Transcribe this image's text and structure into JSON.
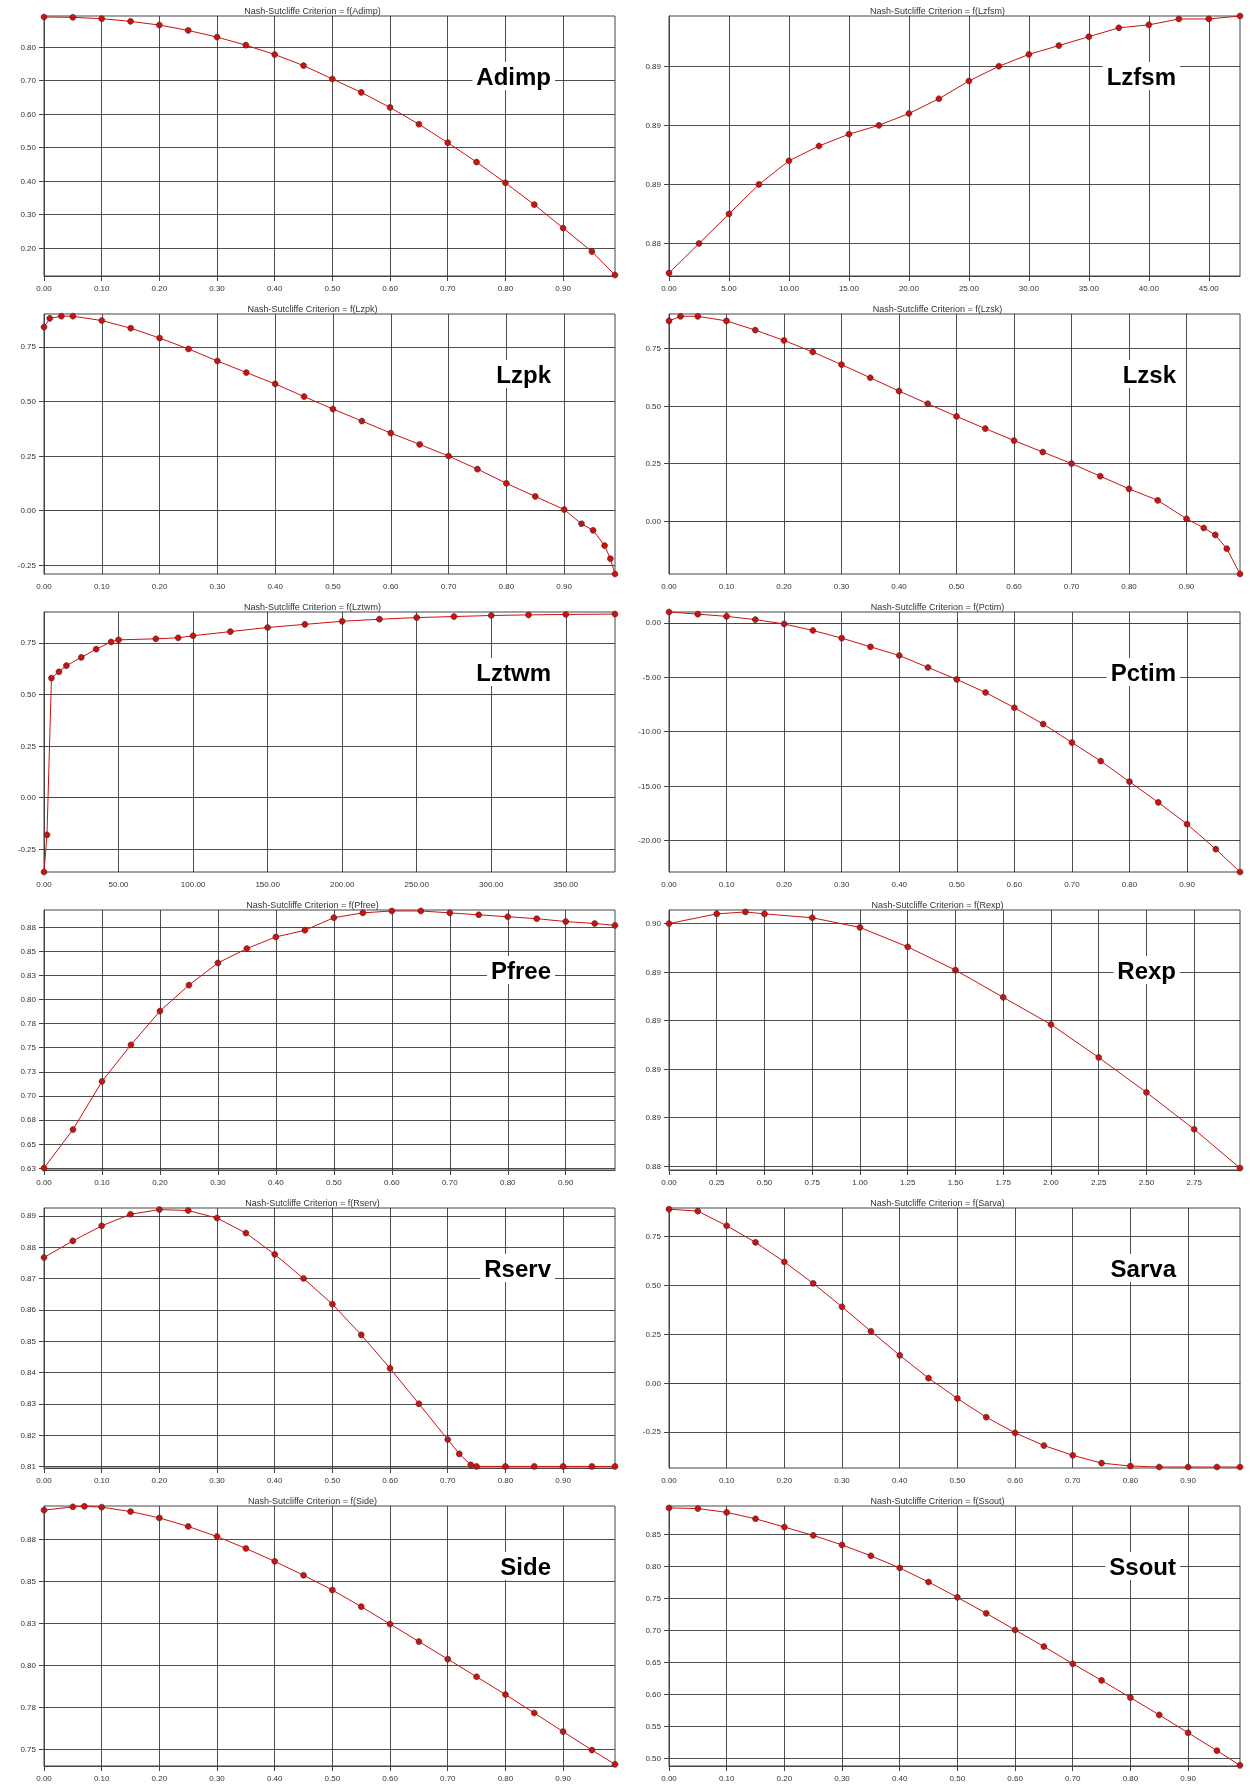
{
  "chart_data": [
    {
      "type": "line",
      "title": "Nash-Sutcliffe Criterion = f(Adimp)",
      "annotations": [
        "Adimp"
      ],
      "color": "#cc1111",
      "marker": "circle",
      "line_style": "solid",
      "grid": true,
      "x": [
        0,
        0.05,
        0.1,
        0.15,
        0.2,
        0.25,
        0.3,
        0.35,
        0.4,
        0.45,
        0.5,
        0.55,
        0.6,
        0.65,
        0.7,
        0.75,
        0.8,
        0.85,
        0.9,
        0.95,
        0.99
      ],
      "values": [
        0.89,
        0.889,
        0.885,
        0.877,
        0.866,
        0.85,
        0.83,
        0.806,
        0.778,
        0.745,
        0.705,
        0.665,
        0.62,
        0.57,
        0.515,
        0.457,
        0.395,
        0.33,
        0.26,
        0.19,
        0.12
      ],
      "xlim": [
        0,
        0.99
      ],
      "xticks": [
        {
          "value": 0,
          "label": "0.00"
        },
        {
          "value": 0.1,
          "label": "0.10"
        },
        {
          "value": 0.2,
          "label": "0.20"
        },
        {
          "value": 0.3,
          "label": "0.30"
        },
        {
          "value": 0.4,
          "label": "0.40"
        },
        {
          "value": 0.5,
          "label": "0.50"
        },
        {
          "value": 0.6,
          "label": "0.60"
        },
        {
          "value": 0.7,
          "label": "0.70"
        },
        {
          "value": 0.8,
          "label": "0.80"
        },
        {
          "value": 0.9,
          "label": "0.90"
        }
      ],
      "ylim": [
        0.117,
        0.893
      ],
      "yticks": [
        {
          "value": 0.2,
          "label": "0.20"
        },
        {
          "value": 0.3,
          "label": "0.30"
        },
        {
          "value": 0.4,
          "label": "0.40"
        },
        {
          "value": 0.5,
          "label": "0.50"
        },
        {
          "value": 0.6,
          "label": "0.60"
        },
        {
          "value": 0.7,
          "label": "0.70"
        },
        {
          "value": 0.8,
          "label": "0.80"
        }
      ]
    },
    {
      "type": "line",
      "title": "Nash-Sutcliffe Criterion = f(Lzfsm)",
      "annotations": [
        "Lzfsm"
      ],
      "color": "#cc1111",
      "marker": "circle",
      "line_style": "solid",
      "grid": true,
      "x": [
        0,
        2.5,
        5,
        7.5,
        10,
        12.5,
        15,
        17.5,
        20,
        22.5,
        25,
        27.5,
        30,
        32.5,
        35,
        37.5,
        40,
        42.5,
        45,
        47.6
      ],
      "values": [
        0.883,
        0.884,
        0.885,
        0.886,
        0.8868,
        0.8873,
        0.8877,
        0.888,
        0.8884,
        0.8889,
        0.8895,
        0.89,
        0.8904,
        0.8907,
        0.891,
        0.8913,
        0.8914,
        0.8916,
        0.8916,
        0.8917
      ],
      "xlim": [
        0,
        47.6
      ],
      "xticks": [
        {
          "value": 0,
          "label": "0.00"
        },
        {
          "value": 5,
          "label": "5.00"
        },
        {
          "value": 10,
          "label": "10.00"
        },
        {
          "value": 15,
          "label": "15.00"
        },
        {
          "value": 20,
          "label": "20.00"
        },
        {
          "value": 25,
          "label": "25.00"
        },
        {
          "value": 30,
          "label": "30.00"
        },
        {
          "value": 35,
          "label": "35.00"
        },
        {
          "value": 40,
          "label": "40.00"
        },
        {
          "value": 45,
          "label": "45.00"
        }
      ],
      "ylim": [
        0.8829,
        0.8917
      ],
      "yticks": [
        {
          "value": 0.884,
          "label": "0.88"
        },
        {
          "value": 0.886,
          "label": "0.89"
        },
        {
          "value": 0.888,
          "label": "0.89"
        },
        {
          "value": 0.89,
          "label": "0.89"
        }
      ]
    },
    {
      "type": "line",
      "title": "Nash-Sutcliffe Criterion = f(Lzpk)",
      "annotations": [
        "Lzpk"
      ],
      "color": "#cc1111",
      "marker": "circle",
      "line_style": "solid",
      "grid": true,
      "x": [
        0,
        0.01,
        0.03,
        0.05,
        0.1,
        0.15,
        0.2,
        0.25,
        0.3,
        0.35,
        0.4,
        0.45,
        0.5,
        0.55,
        0.6,
        0.65,
        0.7,
        0.75,
        0.8,
        0.85,
        0.9,
        0.93,
        0.95,
        0.97,
        0.98,
        0.988
      ],
      "values": [
        0.84,
        0.88,
        0.89,
        0.89,
        0.87,
        0.835,
        0.79,
        0.74,
        0.685,
        0.632,
        0.58,
        0.522,
        0.465,
        0.41,
        0.355,
        0.303,
        0.25,
        0.19,
        0.125,
        0.065,
        0.005,
        -0.06,
        -0.09,
        -0.16,
        -0.22,
        -0.29
      ],
      "xlim": [
        0,
        0.988
      ],
      "xticks": [
        {
          "value": 0,
          "label": "0.00"
        },
        {
          "value": 0.1,
          "label": "0.10"
        },
        {
          "value": 0.2,
          "label": "0.20"
        },
        {
          "value": 0.3,
          "label": "0.30"
        },
        {
          "value": 0.4,
          "label": "0.40"
        },
        {
          "value": 0.5,
          "label": "0.50"
        },
        {
          "value": 0.6,
          "label": "0.60"
        },
        {
          "value": 0.7,
          "label": "0.70"
        },
        {
          "value": 0.8,
          "label": "0.80"
        },
        {
          "value": 0.9,
          "label": "0.90"
        }
      ],
      "ylim": [
        -0.29,
        0.9
      ],
      "yticks": [
        {
          "value": -0.25,
          "label": "-0.25"
        },
        {
          "value": 0,
          "label": "0.00"
        },
        {
          "value": 0.25,
          "label": "0.25"
        },
        {
          "value": 0.5,
          "label": "0.50"
        },
        {
          "value": 0.75,
          "label": "0.75"
        }
      ]
    },
    {
      "type": "line",
      "title": "Nash-Sutcliffe Criterion = f(Lzsk)",
      "annotations": [
        "Lzsk"
      ],
      "color": "#cc1111",
      "marker": "circle",
      "line_style": "solid",
      "grid": true,
      "x": [
        0,
        0.02,
        0.05,
        0.1,
        0.15,
        0.2,
        0.25,
        0.3,
        0.35,
        0.4,
        0.45,
        0.5,
        0.55,
        0.6,
        0.65,
        0.7,
        0.75,
        0.8,
        0.85,
        0.9,
        0.93,
        0.95,
        0.97,
        0.993
      ],
      "values": [
        0.87,
        0.89,
        0.89,
        0.87,
        0.83,
        0.785,
        0.735,
        0.68,
        0.623,
        0.565,
        0.51,
        0.455,
        0.402,
        0.35,
        0.3,
        0.25,
        0.195,
        0.14,
        0.09,
        0.01,
        -0.03,
        -0.06,
        -0.12,
        -0.23
      ],
      "xlim": [
        0,
        0.993
      ],
      "xticks": [
        {
          "value": 0,
          "label": "0.00"
        },
        {
          "value": 0.1,
          "label": "0.10"
        },
        {
          "value": 0.2,
          "label": "0.20"
        },
        {
          "value": 0.3,
          "label": "0.30"
        },
        {
          "value": 0.4,
          "label": "0.40"
        },
        {
          "value": 0.5,
          "label": "0.50"
        },
        {
          "value": 0.6,
          "label": "0.60"
        },
        {
          "value": 0.7,
          "label": "0.70"
        },
        {
          "value": 0.8,
          "label": "0.80"
        },
        {
          "value": 0.9,
          "label": "0.90"
        }
      ],
      "ylim": [
        -0.23,
        0.9
      ],
      "yticks": [
        {
          "value": 0,
          "label": "0.00"
        },
        {
          "value": 0.25,
          "label": "0.25"
        },
        {
          "value": 0.5,
          "label": "0.50"
        },
        {
          "value": 0.75,
          "label": "0.75"
        }
      ]
    },
    {
      "type": "line",
      "title": "Nash-Sutcliffe Criterion = f(Lztwm)",
      "annotations": [
        "Lztwm"
      ],
      "color": "#cc1111",
      "marker": "circle",
      "line_style": "solid",
      "grid": true,
      "x": [
        0,
        2,
        5,
        10,
        15,
        25,
        35,
        45,
        50,
        75,
        90,
        100,
        125,
        150,
        175,
        200,
        225,
        250,
        275,
        300,
        325,
        350,
        383
      ],
      "values": [
        -0.36,
        -0.18,
        0.58,
        0.61,
        0.64,
        0.68,
        0.72,
        0.755,
        0.765,
        0.77,
        0.775,
        0.785,
        0.805,
        0.825,
        0.84,
        0.855,
        0.865,
        0.873,
        0.878,
        0.883,
        0.886,
        0.888,
        0.89
      ],
      "xlim": [
        0,
        383
      ],
      "xticks": [
        {
          "value": 0,
          "label": "0.00"
        },
        {
          "value": 50,
          "label": "50.00"
        },
        {
          "value": 100,
          "label": "100.00"
        },
        {
          "value": 150,
          "label": "150.00"
        },
        {
          "value": 200,
          "label": "200.00"
        },
        {
          "value": 250,
          "label": "250.00"
        },
        {
          "value": 300,
          "label": "300.00"
        },
        {
          "value": 350,
          "label": "350.00"
        }
      ],
      "ylim": [
        -0.36,
        0.9
      ],
      "yticks": [
        {
          "value": -0.25,
          "label": "-0.25"
        },
        {
          "value": 0,
          "label": "0.00"
        },
        {
          "value": 0.25,
          "label": "0.25"
        },
        {
          "value": 0.5,
          "label": "0.50"
        },
        {
          "value": 0.75,
          "label": "0.75"
        }
      ]
    },
    {
      "type": "line",
      "title": "Nash-Sutcliffe Criterion = f(Pctim)",
      "annotations": [
        "Pctim"
      ],
      "color": "#cc1111",
      "marker": "circle",
      "line_style": "solid",
      "grid": true,
      "x": [
        0,
        0.05,
        0.1,
        0.15,
        0.2,
        0.25,
        0.3,
        0.35,
        0.4,
        0.45,
        0.5,
        0.55,
        0.6,
        0.65,
        0.7,
        0.75,
        0.8,
        0.85,
        0.9,
        0.95,
        0.992
      ],
      "values": [
        1.0,
        0.8,
        0.6,
        0.3,
        -0.1,
        -0.7,
        -1.4,
        -2.2,
        -3.0,
        -4.1,
        -5.2,
        -6.4,
        -7.8,
        -9.3,
        -11.0,
        -12.7,
        -14.6,
        -16.5,
        -18.5,
        -20.8,
        -22.9
      ],
      "xlim": [
        0,
        0.992
      ],
      "xticks": [
        {
          "value": 0,
          "label": "0.00"
        },
        {
          "value": 0.1,
          "label": "0.10"
        },
        {
          "value": 0.2,
          "label": "0.20"
        },
        {
          "value": 0.3,
          "label": "0.30"
        },
        {
          "value": 0.4,
          "label": "0.40"
        },
        {
          "value": 0.5,
          "label": "0.50"
        },
        {
          "value": 0.6,
          "label": "0.60"
        },
        {
          "value": 0.7,
          "label": "0.70"
        },
        {
          "value": 0.8,
          "label": "0.80"
        },
        {
          "value": 0.9,
          "label": "0.90"
        }
      ],
      "ylim": [
        -22.9,
        1.0
      ],
      "yticks": [
        {
          "value": -20,
          "label": "-20.00"
        },
        {
          "value": -15,
          "label": "-15.00"
        },
        {
          "value": -10,
          "label": "-10.00"
        },
        {
          "value": -5,
          "label": "-5.00"
        },
        {
          "value": 0,
          "label": "0.00"
        }
      ]
    },
    {
      "type": "line",
      "title": "Nash-Sutcliffe Criterion = f(Pfree)",
      "annotations": [
        "Pfree"
      ],
      "color": "#cc1111",
      "marker": "circle",
      "line_style": "solid",
      "grid": true,
      "x": [
        0,
        0.05,
        0.1,
        0.15,
        0.2,
        0.25,
        0.3,
        0.35,
        0.4,
        0.45,
        0.5,
        0.55,
        0.6,
        0.65,
        0.7,
        0.75,
        0.8,
        0.85,
        0.9,
        0.95,
        0.985
      ],
      "values": [
        0.625,
        0.665,
        0.715,
        0.753,
        0.788,
        0.815,
        0.838,
        0.853,
        0.865,
        0.872,
        0.885,
        0.89,
        0.892,
        0.892,
        0.89,
        0.888,
        0.886,
        0.884,
        0.881,
        0.879,
        0.877
      ],
      "xlim": [
        0,
        0.985
      ],
      "xticks": [
        {
          "value": 0,
          "label": "0.00"
        },
        {
          "value": 0.1,
          "label": "0.10"
        },
        {
          "value": 0.2,
          "label": "0.20"
        },
        {
          "value": 0.3,
          "label": "0.30"
        },
        {
          "value": 0.4,
          "label": "0.40"
        },
        {
          "value": 0.5,
          "label": "0.50"
        },
        {
          "value": 0.6,
          "label": "0.60"
        },
        {
          "value": 0.7,
          "label": "0.70"
        },
        {
          "value": 0.8,
          "label": "0.80"
        },
        {
          "value": 0.9,
          "label": "0.90"
        }
      ],
      "ylim": [
        0.623,
        0.893
      ],
      "yticks": [
        {
          "value": 0.625,
          "label": "0.63"
        },
        {
          "value": 0.65,
          "label": "0.65"
        },
        {
          "value": 0.675,
          "label": "0.68"
        },
        {
          "value": 0.7,
          "label": "0.70"
        },
        {
          "value": 0.725,
          "label": "0.73"
        },
        {
          "value": 0.75,
          "label": "0.75"
        },
        {
          "value": 0.775,
          "label": "0.78"
        },
        {
          "value": 0.8,
          "label": "0.80"
        },
        {
          "value": 0.825,
          "label": "0.83"
        },
        {
          "value": 0.85,
          "label": "0.85"
        },
        {
          "value": 0.875,
          "label": "0.88"
        }
      ]
    },
    {
      "type": "line",
      "title": "Nash-Sutcliffe Criterion = f(Rexp)",
      "annotations": [
        "Rexp"
      ],
      "color": "#cc1111",
      "marker": "circle",
      "line_style": "solid",
      "grid": true,
      "x": [
        0,
        0.25,
        0.4,
        0.5,
        0.75,
        1.0,
        1.25,
        1.5,
        1.75,
        2.0,
        2.25,
        2.5,
        2.75,
        2.99
      ],
      "values": [
        0.896,
        0.8965,
        0.8966,
        0.8965,
        0.8963,
        0.8958,
        0.8948,
        0.8936,
        0.8922,
        0.8908,
        0.8891,
        0.8873,
        0.8854,
        0.8834
      ],
      "xlim": [
        0,
        2.99
      ],
      "xticks": [
        {
          "value": 0,
          "label": "0.00"
        },
        {
          "value": 0.25,
          "label": "0.25"
        },
        {
          "value": 0.5,
          "label": "0.50"
        },
        {
          "value": 0.75,
          "label": "0.75"
        },
        {
          "value": 1,
          "label": "1.00"
        },
        {
          "value": 1.25,
          "label": "1.25"
        },
        {
          "value": 1.5,
          "label": "1.50"
        },
        {
          "value": 1.75,
          "label": "1.75"
        },
        {
          "value": 2,
          "label": "2.00"
        },
        {
          "value": 2.25,
          "label": "2.25"
        },
        {
          "value": 2.5,
          "label": "2.50"
        },
        {
          "value": 2.75,
          "label": "2.75"
        }
      ],
      "ylim": [
        0.8833,
        0.8967
      ],
      "yticks": [
        {
          "value": 0.8835,
          "label": "0.88"
        },
        {
          "value": 0.886,
          "label": "0.89"
        },
        {
          "value": 0.8885,
          "label": "0.89"
        },
        {
          "value": 0.891,
          "label": "0.89"
        },
        {
          "value": 0.8935,
          "label": "0.89"
        },
        {
          "value": 0.896,
          "label": "0.90"
        }
      ]
    },
    {
      "type": "line",
      "title": "Nash-Sutcliffe Criterion = f(Rserv)",
      "annotations": [
        "Rserv"
      ],
      "color": "#cc1111",
      "marker": "circle",
      "line_style": "solid",
      "grid": true,
      "x": [
        0,
        0.05,
        0.1,
        0.15,
        0.2,
        0.25,
        0.3,
        0.35,
        0.4,
        0.45,
        0.5,
        0.55,
        0.6,
        0.65,
        0.7,
        0.72,
        0.74,
        0.75,
        0.8,
        0.85,
        0.9,
        0.95,
        0.99
      ],
      "values": [
        0.8767,
        0.882,
        0.8868,
        0.8905,
        0.892,
        0.8917,
        0.8893,
        0.8845,
        0.8777,
        0.87,
        0.8618,
        0.852,
        0.8413,
        0.83,
        0.8186,
        0.814,
        0.8105,
        0.81,
        0.81,
        0.81,
        0.81,
        0.81,
        0.81
      ],
      "xlim": [
        0,
        0.99
      ],
      "xticks": [
        {
          "value": 0,
          "label": "0.00"
        },
        {
          "value": 0.1,
          "label": "0.10"
        },
        {
          "value": 0.2,
          "label": "0.20"
        },
        {
          "value": 0.3,
          "label": "0.30"
        },
        {
          "value": 0.4,
          "label": "0.40"
        },
        {
          "value": 0.5,
          "label": "0.50"
        },
        {
          "value": 0.6,
          "label": "0.60"
        },
        {
          "value": 0.7,
          "label": "0.70"
        },
        {
          "value": 0.8,
          "label": "0.80"
        },
        {
          "value": 0.9,
          "label": "0.90"
        }
      ],
      "ylim": [
        0.8095,
        0.8925
      ],
      "yticks": [
        {
          "value": 0.81,
          "label": "0.81"
        },
        {
          "value": 0.82,
          "label": "0.82"
        },
        {
          "value": 0.83,
          "label": "0.83"
        },
        {
          "value": 0.84,
          "label": "0.84"
        },
        {
          "value": 0.85,
          "label": "0.85"
        },
        {
          "value": 0.86,
          "label": "0.86"
        },
        {
          "value": 0.87,
          "label": "0.87"
        },
        {
          "value": 0.88,
          "label": "0.88"
        },
        {
          "value": 0.89,
          "label": "0.89"
        }
      ]
    },
    {
      "type": "line",
      "title": "Nash-Sutcliffe Criterion = f(Sarva)",
      "annotations": [
        "Sarva"
      ],
      "color": "#cc1111",
      "marker": "circle",
      "line_style": "solid",
      "grid": true,
      "x": [
        0,
        0.05,
        0.1,
        0.15,
        0.2,
        0.25,
        0.3,
        0.35,
        0.4,
        0.45,
        0.5,
        0.55,
        0.6,
        0.65,
        0.7,
        0.75,
        0.8,
        0.85,
        0.9,
        0.95,
        0.99
      ],
      "values": [
        0.89,
        0.88,
        0.805,
        0.72,
        0.62,
        0.51,
        0.39,
        0.265,
        0.142,
        0.025,
        -0.079,
        -0.175,
        -0.255,
        -0.32,
        -0.37,
        -0.41,
        -0.425,
        -0.43,
        -0.43,
        -0.43,
        -0.43
      ],
      "xlim": [
        0,
        0.99
      ],
      "xticks": [
        {
          "value": 0,
          "label": "0.00"
        },
        {
          "value": 0.1,
          "label": "0.10"
        },
        {
          "value": 0.2,
          "label": "0.20"
        },
        {
          "value": 0.3,
          "label": "0.30"
        },
        {
          "value": 0.4,
          "label": "0.40"
        },
        {
          "value": 0.5,
          "label": "0.50"
        },
        {
          "value": 0.6,
          "label": "0.60"
        },
        {
          "value": 0.7,
          "label": "0.70"
        },
        {
          "value": 0.8,
          "label": "0.80"
        },
        {
          "value": 0.9,
          "label": "0.90"
        }
      ],
      "ylim": [
        -0.435,
        0.896
      ],
      "yticks": [
        {
          "value": -0.25,
          "label": "-0.25"
        },
        {
          "value": 0,
          "label": "0.00"
        },
        {
          "value": 0.25,
          "label": "0.25"
        },
        {
          "value": 0.5,
          "label": "0.50"
        },
        {
          "value": 0.75,
          "label": "0.75"
        }
      ]
    },
    {
      "type": "line",
      "title": "Nash-Sutcliffe Criterion = f(Side)",
      "annotations": [
        "Side"
      ],
      "color": "#cc1111",
      "marker": "circle",
      "line_style": "solid",
      "grid": true,
      "x": [
        0,
        0.05,
        0.07,
        0.1,
        0.15,
        0.2,
        0.25,
        0.3,
        0.35,
        0.4,
        0.45,
        0.5,
        0.55,
        0.6,
        0.65,
        0.7,
        0.75,
        0.8,
        0.85,
        0.9,
        0.95,
        0.99
      ],
      "values": [
        0.8925,
        0.8945,
        0.8948,
        0.8943,
        0.8917,
        0.8879,
        0.8828,
        0.8768,
        0.8697,
        0.862,
        0.8537,
        0.8449,
        0.835,
        0.8246,
        0.8142,
        0.8037,
        0.7932,
        0.7826,
        0.7716,
        0.7605,
        0.7495,
        0.741
      ],
      "xlim": [
        0,
        0.99
      ],
      "xticks": [
        {
          "value": 0,
          "label": "0.00"
        },
        {
          "value": 0.1,
          "label": "0.10"
        },
        {
          "value": 0.2,
          "label": "0.20"
        },
        {
          "value": 0.3,
          "label": "0.30"
        },
        {
          "value": 0.4,
          "label": "0.40"
        },
        {
          "value": 0.5,
          "label": "0.50"
        },
        {
          "value": 0.6,
          "label": "0.60"
        },
        {
          "value": 0.7,
          "label": "0.70"
        },
        {
          "value": 0.8,
          "label": "0.80"
        },
        {
          "value": 0.9,
          "label": "0.90"
        }
      ],
      "ylim": [
        0.74,
        0.895
      ],
      "yticks": [
        {
          "value": 0.75,
          "label": "0.75"
        },
        {
          "value": 0.775,
          "label": "0.78"
        },
        {
          "value": 0.8,
          "label": "0.80"
        },
        {
          "value": 0.825,
          "label": "0.83"
        },
        {
          "value": 0.85,
          "label": "0.85"
        },
        {
          "value": 0.875,
          "label": "0.88"
        }
      ]
    },
    {
      "type": "line",
      "title": "Nash-Sutcliffe Criterion = f(Ssout)",
      "annotations": [
        "Ssout"
      ],
      "color": "#cc1111",
      "marker": "circle",
      "line_style": "solid",
      "grid": true,
      "x": [
        0,
        0.05,
        0.1,
        0.15,
        0.2,
        0.25,
        0.3,
        0.35,
        0.4,
        0.45,
        0.5,
        0.55,
        0.6,
        0.65,
        0.7,
        0.75,
        0.8,
        0.85,
        0.9,
        0.95,
        0.99
      ],
      "values": [
        0.892,
        0.891,
        0.885,
        0.875,
        0.862,
        0.849,
        0.834,
        0.817,
        0.798,
        0.776,
        0.752,
        0.727,
        0.701,
        0.675,
        0.648,
        0.622,
        0.595,
        0.568,
        0.54,
        0.512,
        0.489
      ],
      "xlim": [
        0,
        0.99
      ],
      "xticks": [
        {
          "value": 0,
          "label": "0.00"
        },
        {
          "value": 0.1,
          "label": "0.10"
        },
        {
          "value": 0.2,
          "label": "0.20"
        },
        {
          "value": 0.3,
          "label": "0.30"
        },
        {
          "value": 0.4,
          "label": "0.40"
        },
        {
          "value": 0.5,
          "label": "0.50"
        },
        {
          "value": 0.6,
          "label": "0.60"
        },
        {
          "value": 0.7,
          "label": "0.70"
        },
        {
          "value": 0.8,
          "label": "0.80"
        },
        {
          "value": 0.9,
          "label": "0.90"
        }
      ],
      "ylim": [
        0.488,
        0.895
      ],
      "yticks": [
        {
          "value": 0.5,
          "label": "0.50"
        },
        {
          "value": 0.55,
          "label": "0.55"
        },
        {
          "value": 0.6,
          "label": "0.60"
        },
        {
          "value": 0.65,
          "label": "0.65"
        },
        {
          "value": 0.7,
          "label": "0.70"
        },
        {
          "value": 0.75,
          "label": "0.75"
        },
        {
          "value": 0.8,
          "label": "0.80"
        },
        {
          "value": 0.85,
          "label": "0.85"
        }
      ]
    }
  ]
}
